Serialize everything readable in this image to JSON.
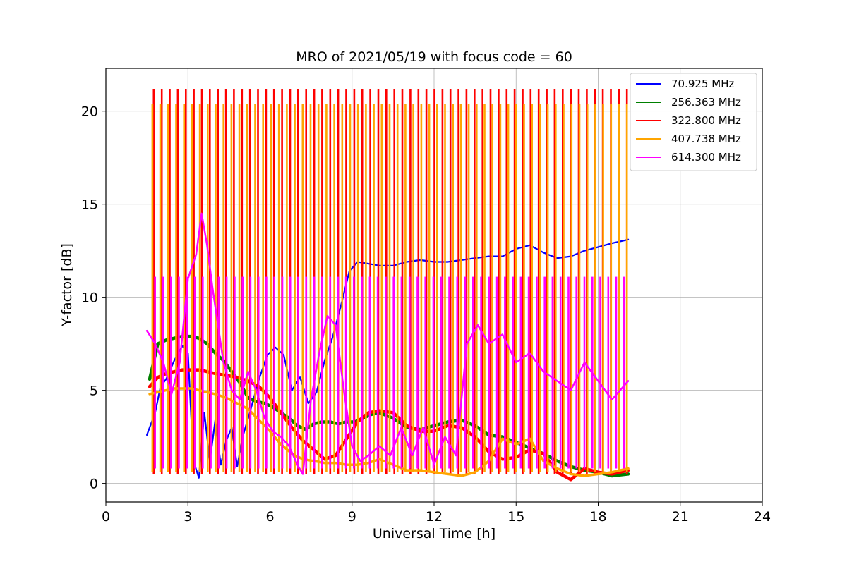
{
  "chart_data": {
    "type": "line",
    "title": "MRO of 2021/05/19 with focus code = 60",
    "xlabel": "Universal Time [h]",
    "ylabel": "Y-factor [dB]",
    "xlim": [
      0,
      24
    ],
    "ylim": [
      -1.0,
      22.3
    ],
    "xticks": [
      0,
      3,
      6,
      9,
      12,
      15,
      18,
      21,
      24
    ],
    "yticks": [
      0,
      5,
      10,
      15,
      20
    ],
    "grid": true,
    "legend_position": "top-right",
    "series": [
      {
        "name": " 70.925 MHz",
        "color": "#0000ff",
        "pulses": [],
        "x": [
          1.5,
          1.8,
          2.0,
          2.2,
          2.5,
          2.8,
          3.0,
          3.2,
          3.4,
          3.6,
          3.8,
          4.0,
          4.2,
          4.4,
          4.6,
          4.8,
          5.0,
          5.3,
          5.6,
          5.9,
          6.2,
          6.5,
          6.8,
          7.1,
          7.4,
          7.7,
          8.0,
          8.3,
          8.6,
          8.9,
          9.2,
          9.6,
          10.0,
          10.5,
          11.0,
          11.5,
          12.0,
          12.5,
          13.0,
          13.5,
          14.0,
          14.5,
          15.0,
          15.5,
          16.0,
          16.5,
          17.0,
          17.5,
          18.0,
          18.5,
          19.1
        ],
        "y": [
          2.6,
          3.8,
          5.2,
          5.6,
          6.6,
          7.4,
          7.0,
          1.2,
          0.3,
          3.8,
          1.2,
          3.4,
          1.0,
          2.3,
          3.0,
          0.9,
          2.5,
          4.0,
          5.6,
          6.9,
          7.3,
          6.9,
          5.0,
          5.7,
          4.3,
          4.9,
          6.6,
          7.9,
          9.6,
          11.4,
          11.9,
          11.8,
          11.7,
          11.7,
          11.9,
          12.0,
          11.9,
          11.9,
          12.0,
          12.1,
          12.2,
          12.2,
          12.6,
          12.8,
          12.4,
          12.1,
          12.2,
          12.5,
          12.7,
          12.9,
          13.1
        ],
        "width": 2.2
      },
      {
        "name": "256.363 MHz",
        "color": "#008000",
        "pulses": [],
        "x": [
          1.6,
          1.9,
          2.2,
          2.5,
          2.8,
          3.1,
          3.4,
          3.7,
          4.0,
          4.3,
          4.6,
          4.9,
          5.2,
          5.5,
          5.8,
          6.1,
          6.4,
          6.7,
          7.0,
          7.3,
          7.6,
          7.9,
          8.2,
          8.5,
          8.8,
          9.1,
          9.4,
          9.7,
          10.0,
          10.5,
          11.0,
          11.5,
          12.0,
          12.5,
          13.0,
          13.5,
          14.0,
          14.5,
          15.0,
          15.5,
          16.0,
          16.5,
          17.0,
          17.5,
          18.0,
          18.5,
          19.1
        ],
        "y": [
          5.6,
          7.5,
          7.7,
          7.8,
          7.9,
          7.9,
          7.8,
          7.5,
          7.0,
          6.6,
          6.0,
          5.4,
          4.6,
          4.4,
          4.3,
          4.1,
          3.8,
          3.5,
          3.1,
          2.9,
          3.2,
          3.3,
          3.3,
          3.2,
          3.3,
          3.3,
          3.5,
          3.7,
          3.8,
          3.5,
          3.0,
          2.9,
          3.1,
          3.3,
          3.4,
          3.1,
          2.6,
          2.5,
          2.2,
          1.9,
          1.6,
          1.2,
          0.9,
          0.7,
          0.6,
          0.4,
          0.5
        ],
        "width": 4.5
      },
      {
        "name": "322.800 MHz",
        "color": "#ff0000",
        "pulses": [
          {
            "x": [
              1.75,
              19.05
            ],
            "count": 60,
            "low": 0.5,
            "high": 21.2
          }
        ],
        "x": [
          1.6,
          1.9,
          2.2,
          2.5,
          2.8,
          3.1,
          3.4,
          3.7,
          4.0,
          4.4,
          4.8,
          5.2,
          5.6,
          6.0,
          6.4,
          6.8,
          7.2,
          7.6,
          8.0,
          8.4,
          8.8,
          9.2,
          9.6,
          10.0,
          10.5,
          11.0,
          11.5,
          12.0,
          12.5,
          13.0,
          13.5,
          14.0,
          14.5,
          15.0,
          15.5,
          16.0,
          16.5,
          17.0,
          17.5,
          18.0,
          18.5,
          19.1
        ],
        "y": [
          5.2,
          5.7,
          5.9,
          6.0,
          6.1,
          6.1,
          6.1,
          6.0,
          5.9,
          5.8,
          5.7,
          5.5,
          5.2,
          4.6,
          3.8,
          3.0,
          2.3,
          1.8,
          1.3,
          1.5,
          2.4,
          3.3,
          3.8,
          3.9,
          3.8,
          3.1,
          2.8,
          2.8,
          3.1,
          3.0,
          2.5,
          1.7,
          1.3,
          1.4,
          1.8,
          1.6,
          0.6,
          0.2,
          0.8,
          0.6,
          0.5,
          0.7
        ],
        "width": 4.5
      },
      {
        "name": "407.738 MHz",
        "color": "#ffa500",
        "pulses": [
          {
            "x": [
              1.7,
              19.05
            ],
            "count": 61,
            "low": 0.6,
            "high": 20.4
          }
        ],
        "x": [
          1.6,
          1.9,
          2.2,
          2.5,
          2.8,
          3.1,
          3.4,
          3.7,
          4.0,
          4.4,
          4.8,
          5.2,
          5.6,
          6.0,
          6.4,
          6.8,
          7.2,
          7.6,
          8.0,
          8.4,
          8.8,
          9.2,
          9.6,
          10.0,
          10.5,
          11.0,
          11.5,
          12.0,
          12.5,
          13.0,
          13.5,
          14.0,
          14.5,
          15.0,
          15.5,
          16.0,
          16.5,
          17.0,
          17.5,
          18.0,
          18.5,
          19.1
        ],
        "y": [
          4.8,
          4.9,
          5.0,
          5.1,
          5.1,
          5.1,
          5.0,
          4.9,
          4.8,
          4.6,
          4.3,
          4.0,
          3.4,
          2.8,
          2.1,
          1.6,
          1.3,
          1.2,
          1.1,
          1.1,
          1.0,
          1.0,
          1.1,
          1.3,
          1.0,
          0.7,
          0.7,
          0.6,
          0.5,
          0.4,
          0.6,
          1.2,
          2.4,
          2.1,
          2.4,
          1.2,
          0.8,
          0.5,
          0.4,
          0.5,
          0.6,
          0.8
        ],
        "width": 3.5
      },
      {
        "name": "614.300 MHz",
        "color": "#ff00ff",
        "pulses": [
          {
            "x": [
              1.8,
              18.95
            ],
            "count": 60,
            "low": 0.8,
            "high": 11.1
          }
        ],
        "x": [
          1.5,
          1.8,
          2.1,
          2.4,
          2.7,
          3.0,
          3.3,
          3.5,
          3.7,
          3.9,
          4.1,
          4.3,
          4.6,
          4.9,
          5.2,
          5.5,
          5.8,
          6.1,
          6.4,
          6.7,
          7.0,
          7.2,
          7.5,
          7.8,
          8.1,
          8.4,
          8.7,
          9.0,
          9.3,
          9.6,
          10.0,
          10.4,
          10.8,
          11.2,
          11.6,
          12.0,
          12.4,
          12.8,
          13.2,
          13.6,
          14.0,
          14.5,
          15.0,
          15.5,
          16.0,
          16.5,
          17.0,
          17.5,
          18.0,
          18.5,
          19.1
        ],
        "y": [
          8.2,
          7.5,
          6.5,
          4.8,
          6.5,
          11.0,
          12.3,
          14.5,
          12.8,
          10.5,
          8.5,
          6.5,
          5.0,
          4.5,
          6.0,
          5.0,
          3.5,
          2.8,
          2.5,
          2.0,
          1.0,
          0.5,
          4.5,
          7.0,
          9.0,
          8.5,
          5.0,
          2.0,
          1.2,
          1.5,
          2.0,
          1.5,
          3.0,
          1.5,
          3.0,
          1.0,
          2.5,
          1.5,
          7.5,
          8.5,
          7.5,
          8.0,
          6.5,
          7.0,
          6.0,
          5.5,
          5.0,
          6.5,
          5.5,
          4.5,
          5.5
        ],
        "width": 2.5
      }
    ]
  }
}
